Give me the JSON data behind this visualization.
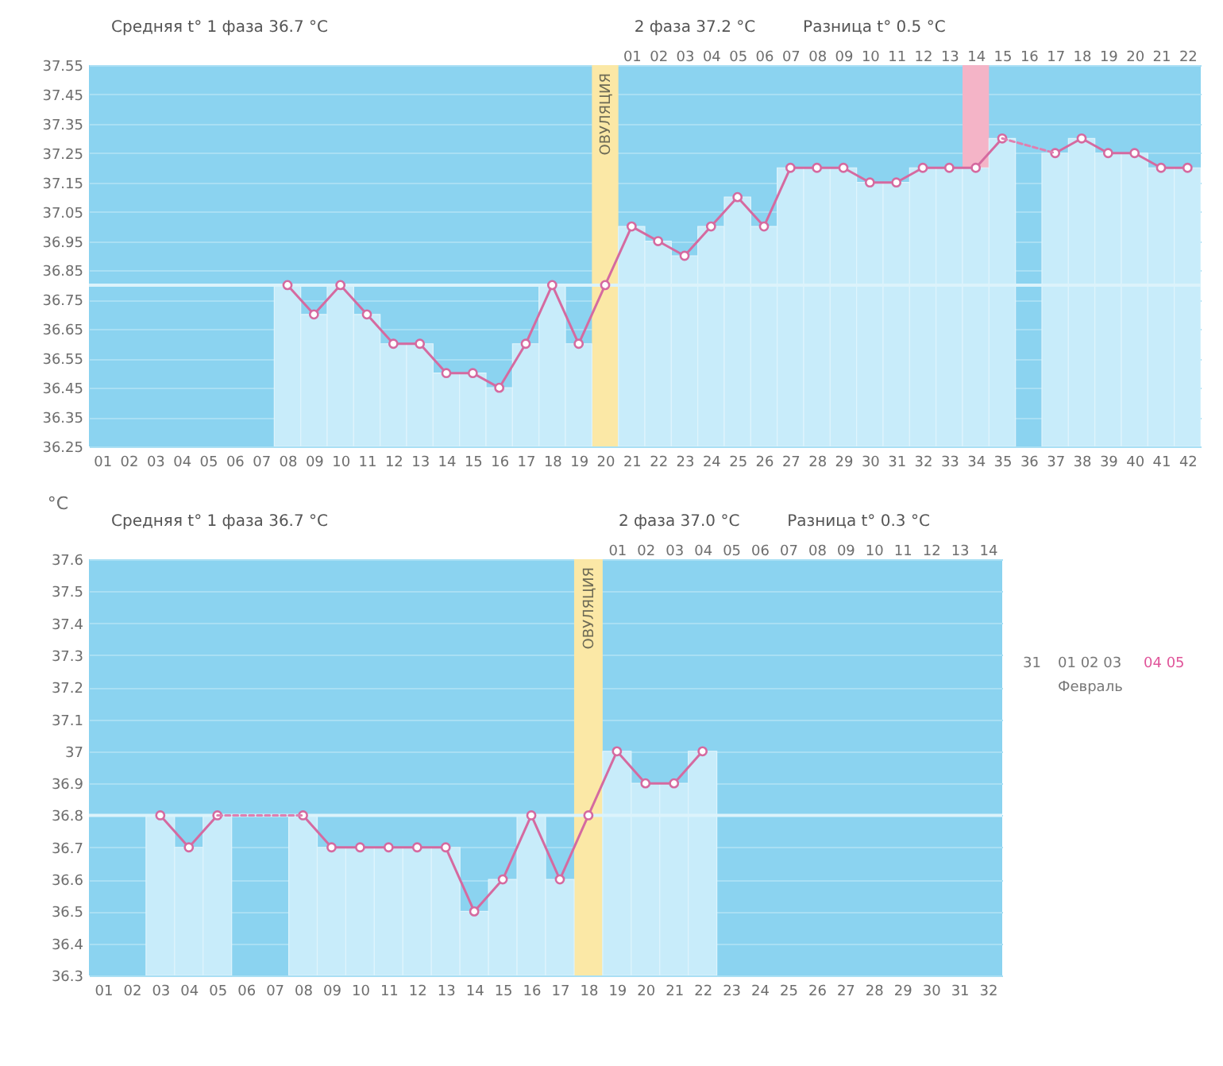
{
  "chart_data": [
    {
      "type": "line",
      "x": [
        8,
        9,
        10,
        11,
        12,
        13,
        14,
        15,
        16,
        17,
        18,
        19,
        20,
        21,
        22,
        23,
        24,
        25,
        26,
        27,
        28,
        29,
        30,
        31,
        32,
        33,
        34,
        35,
        36,
        37,
        38,
        39,
        40,
        41,
        42
      ],
      "xlim": [
        0.5,
        42.5
      ],
      "xticks": [
        {
          "value": 1,
          "label": "01"
        },
        {
          "value": 2,
          "label": "02"
        },
        {
          "value": 3,
          "label": "03"
        },
        {
          "value": 4,
          "label": "04"
        },
        {
          "value": 5,
          "label": "05"
        },
        {
          "value": 6,
          "label": "06"
        },
        {
          "value": 7,
          "label": "07"
        },
        {
          "value": 8,
          "label": "08"
        },
        {
          "value": 9,
          "label": "09"
        },
        10,
        11,
        12,
        13,
        14,
        15,
        16,
        17,
        18,
        19,
        20,
        21,
        22,
        23,
        24,
        25,
        26,
        27,
        28,
        29,
        30,
        31,
        32,
        33,
        34,
        35,
        36,
        37,
        38,
        39,
        40,
        41,
        42
      ],
      "x2lim": [
        -19.5,
        22.5
      ],
      "x2ticks": [
        {
          "value": 1,
          "label": "01"
        },
        {
          "value": 2,
          "label": "02"
        },
        {
          "value": 3,
          "label": "03"
        },
        {
          "value": 4,
          "label": "04"
        },
        {
          "value": 5,
          "label": "05"
        },
        {
          "value": 6,
          "label": "06"
        },
        {
          "value": 7,
          "label": "07"
        },
        {
          "value": 8,
          "label": "08"
        },
        {
          "value": 9,
          "label": "09"
        },
        10,
        11,
        12,
        13,
        14,
        15,
        16,
        17,
        18,
        19,
        20,
        21,
        22
      ],
      "ylim": [
        36.25,
        37.55
      ],
      "yticks": [
        36.25,
        36.35,
        36.45,
        36.55,
        36.65,
        36.75,
        36.85,
        36.95,
        37.05,
        37.15,
        37.25,
        37.35,
        37.45,
        37.55
      ],
      "grid": "y",
      "marker": "circle",
      "series": [
        {
          "type": "bar",
          "color": "#c8ecfa",
          "values": [
            36.8,
            36.7,
            36.8,
            36.7,
            36.6,
            36.6,
            36.5,
            36.5,
            36.45,
            36.6,
            36.8,
            36.6,
            null,
            37.0,
            36.95,
            36.9,
            37.0,
            37.1,
            37.0,
            37.2,
            37.2,
            37.2,
            37.15,
            37.15,
            37.2,
            37.2,
            37.2,
            37.3,
            null,
            37.25,
            37.3,
            37.25,
            37.25,
            37.2,
            37.2
          ]
        },
        {
          "type": "line",
          "color": "#d56aa0",
          "values": [
            36.8,
            36.7,
            36.8,
            36.7,
            36.6,
            36.6,
            36.5,
            36.5,
            36.45,
            36.6,
            36.8,
            36.6,
            36.8,
            37.0,
            36.95,
            36.9,
            37.0,
            37.1,
            37.0,
            37.2,
            37.2,
            37.2,
            37.15,
            37.15,
            37.2,
            37.2,
            37.2,
            37.3,
            null,
            37.25,
            37.3,
            37.25,
            37.25,
            37.2,
            37.2
          ]
        },
        {
          "type": "line",
          "color": "#e07fb0",
          "line_style": "dotted",
          "marker": "none",
          "x": [
            35,
            37
          ],
          "values": [
            37.3,
            37.25
          ]
        }
      ],
      "ref_lines": [
        {
          "axis": "y",
          "value": 36.8,
          "color": "#dcf3fb"
        }
      ],
      "bands": [
        {
          "axis": "x",
          "from": 19.5,
          "to": 20.5,
          "label": "ОВУЛЯЦИЯ",
          "color": "#fbe8a6"
        },
        {
          "axis": "x",
          "from": 33.5,
          "to": 34.5,
          "color": "#f4b4c7"
        }
      ],
      "annotations": [
        "Средняя t° 1 фаза 36.7 °C",
        "2 фаза 37.2 °C",
        "Разница t° 0.5 °C"
      ]
    },
    {
      "type": "line",
      "x": [
        3,
        4,
        5,
        6,
        7,
        8,
        9,
        10,
        11,
        12,
        13,
        14,
        15,
        16,
        17,
        18,
        19,
        20,
        21,
        22
      ],
      "xlim": [
        0.5,
        32.5
      ],
      "xticks": [
        {
          "value": 1,
          "label": "01"
        },
        {
          "value": 2,
          "label": "02"
        },
        {
          "value": 3,
          "label": "03"
        },
        {
          "value": 4,
          "label": "04"
        },
        {
          "value": 5,
          "label": "05"
        },
        {
          "value": 6,
          "label": "06"
        },
        {
          "value": 7,
          "label": "07"
        },
        {
          "value": 8,
          "label": "08"
        },
        {
          "value": 9,
          "label": "09"
        },
        10,
        11,
        12,
        13,
        14,
        15,
        16,
        17,
        18,
        19,
        20,
        21,
        22,
        23,
        24,
        25,
        26,
        27,
        28,
        29,
        30,
        31,
        32
      ],
      "x2lim": [
        -17.5,
        14.5
      ],
      "x2ticks": [
        {
          "value": 1,
          "label": "01"
        },
        {
          "value": 2,
          "label": "02"
        },
        {
          "value": 3,
          "label": "03"
        },
        {
          "value": 4,
          "label": "04"
        },
        {
          "value": 5,
          "label": "05"
        },
        {
          "value": 6,
          "label": "06"
        },
        {
          "value": 7,
          "label": "07"
        },
        {
          "value": 8,
          "label": "08"
        },
        {
          "value": 9,
          "label": "09"
        },
        10,
        11,
        12,
        13,
        14
      ],
      "ylim": [
        36.3,
        37.6
      ],
      "yticks": [
        36.3,
        36.4,
        36.5,
        36.6,
        36.7,
        36.8,
        36.9,
        37,
        37.1,
        37.2,
        37.3,
        37.4,
        37.5,
        37.6
      ],
      "ylabel": "°C",
      "grid": "y",
      "marker": "circle",
      "series": [
        {
          "type": "bar",
          "color": "#c8ecfa",
          "values": [
            36.8,
            36.7,
            36.8,
            null,
            null,
            36.8,
            36.7,
            36.7,
            36.7,
            36.7,
            36.7,
            36.5,
            36.6,
            36.8,
            36.6,
            null,
            37.0,
            36.9,
            36.9,
            37.0
          ]
        },
        {
          "type": "line",
          "color": "#d56aa0",
          "values": [
            36.8,
            36.7,
            36.8,
            null,
            null,
            36.8,
            36.7,
            36.7,
            36.7,
            36.7,
            36.7,
            36.5,
            36.6,
            36.8,
            36.6,
            36.8,
            37.0,
            36.9,
            36.9,
            37.0
          ]
        },
        {
          "type": "line",
          "color": "#e07fb0",
          "line_style": "dotted",
          "marker": "none",
          "x": [
            5,
            8
          ],
          "values": [
            36.8,
            36.8
          ]
        }
      ],
      "ref_lines": [
        {
          "axis": "y",
          "value": 36.8,
          "color": "#dcf3fb"
        }
      ],
      "bands": [
        {
          "axis": "x",
          "from": 17.5,
          "to": 18.5,
          "label": "ОВУЛЯЦИЯ",
          "color": "#fbe8a6"
        }
      ],
      "annotations": [
        "Средняя t° 1 фаза 36.7 °C",
        "2 фаза 37.0 °C",
        "Разница t° 0.3 °C"
      ]
    },
    {
      "type": "other",
      "annotations": [
        "31",
        "01 02 03",
        "04 05",
        "Февраль"
      ],
      "colors": [
        "#777777",
        "#777777",
        "#e0559a",
        "#777777"
      ]
    }
  ]
}
